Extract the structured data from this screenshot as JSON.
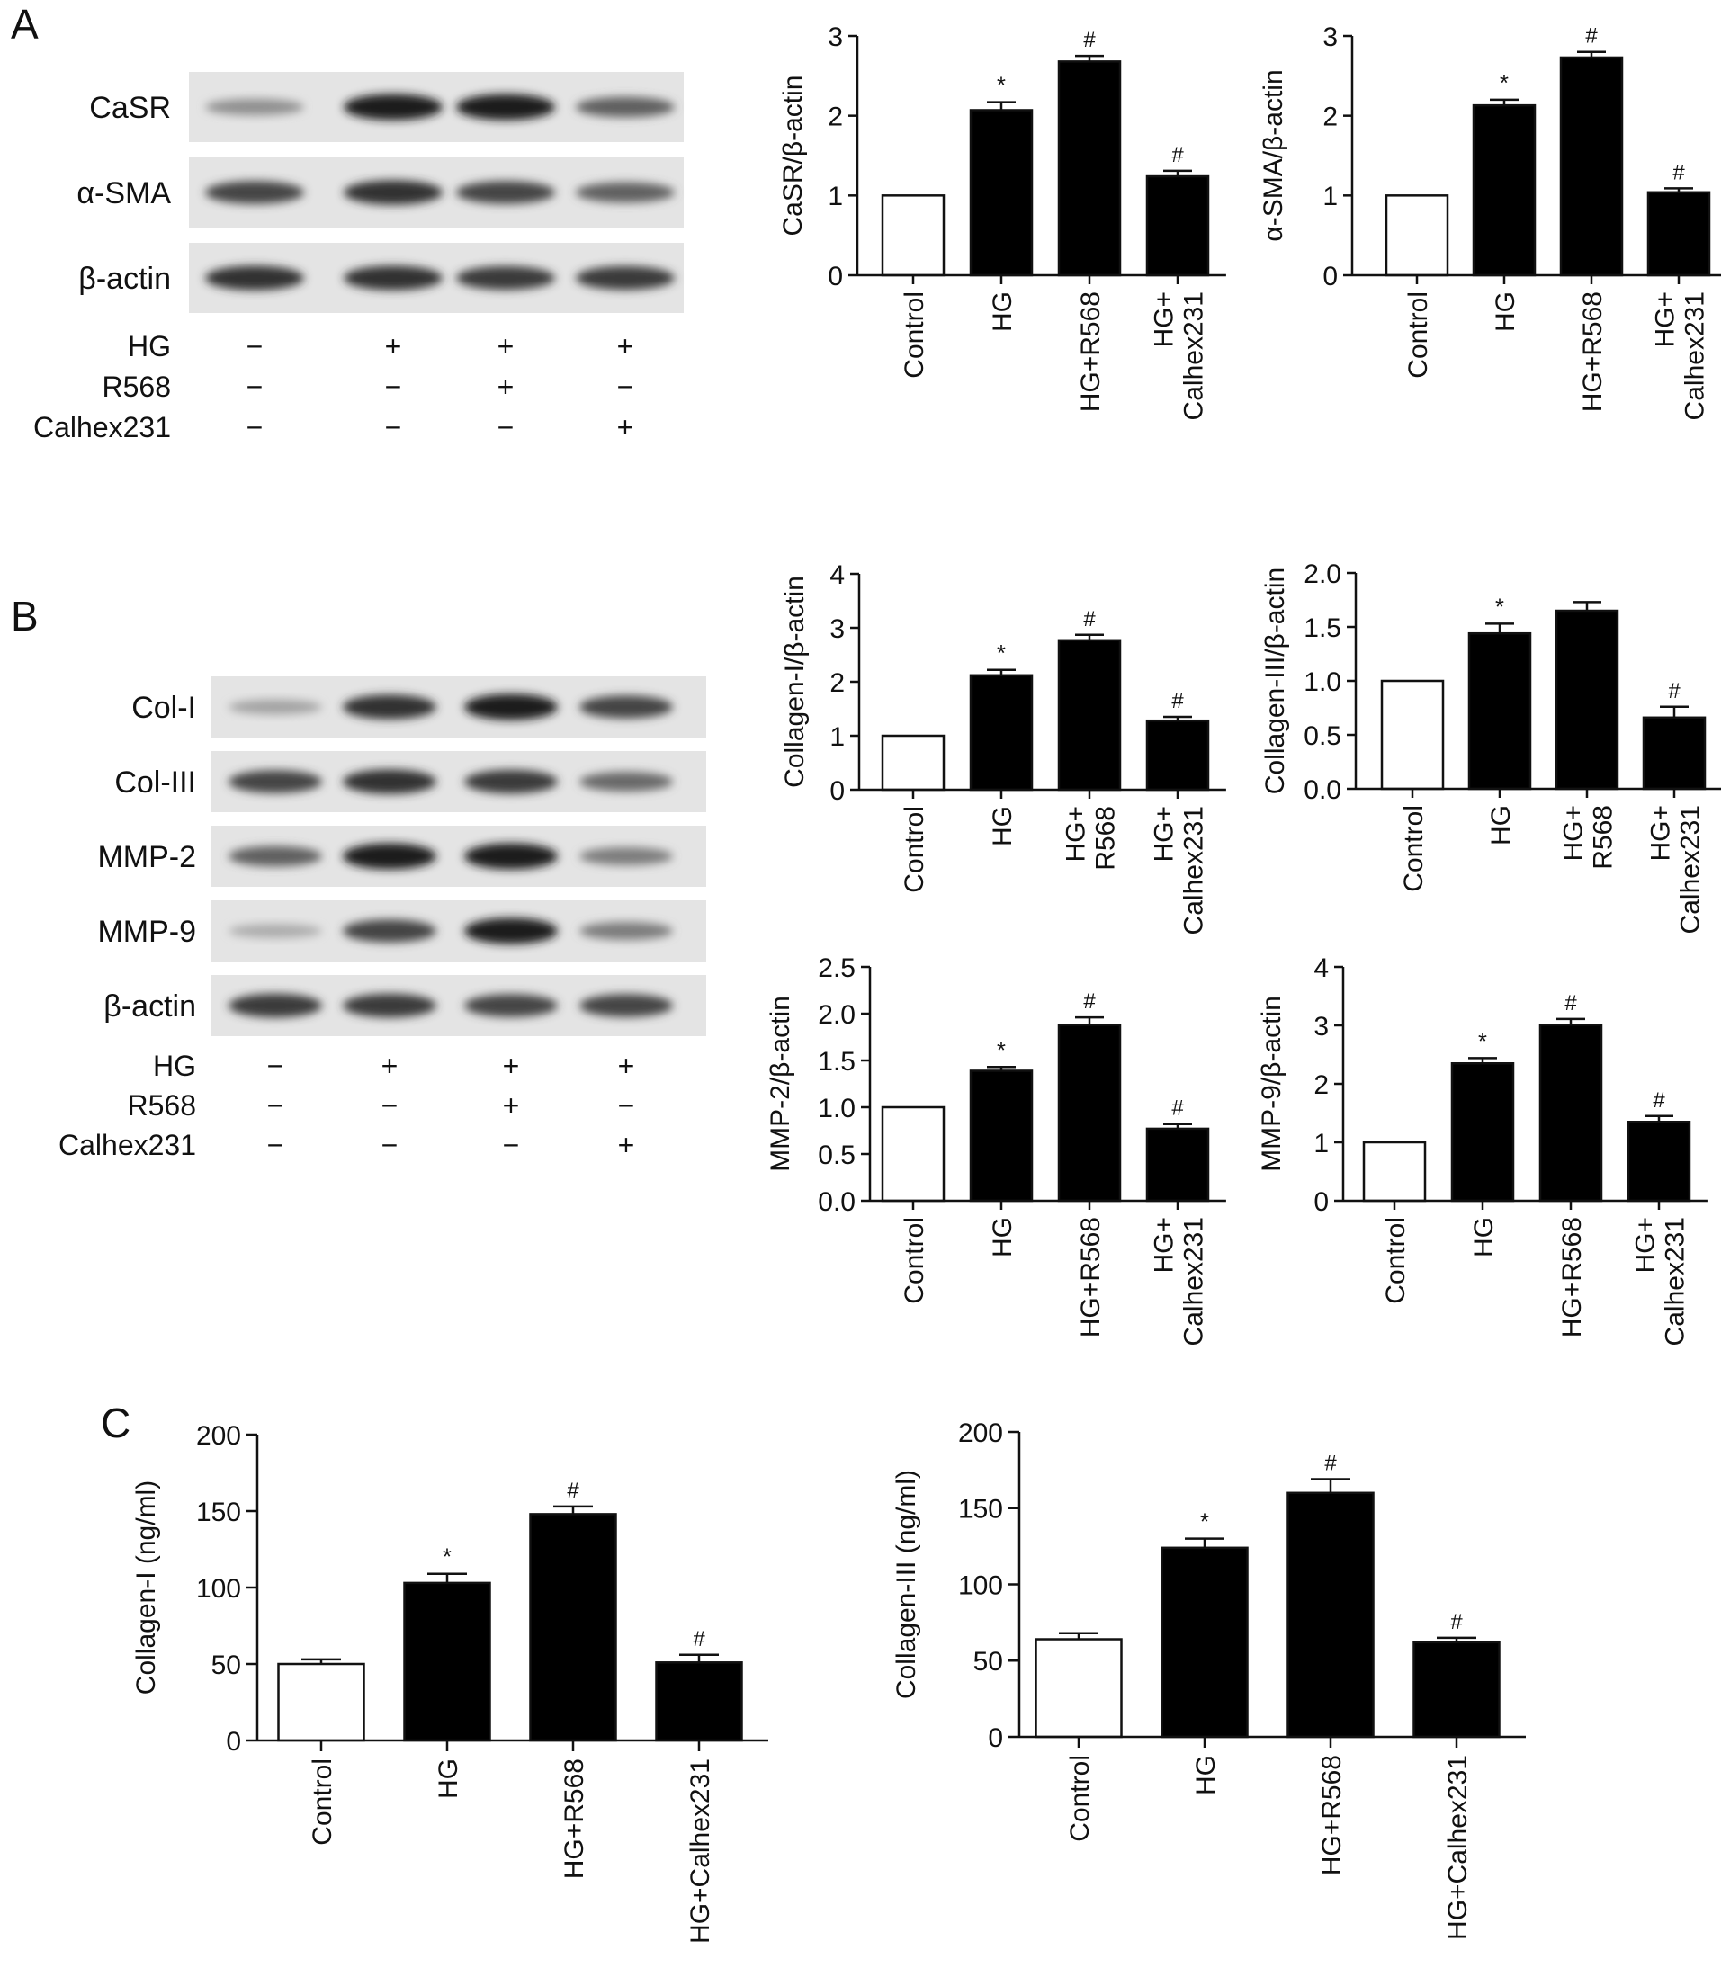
{
  "panels": {
    "A": {
      "letter": "A",
      "blot": {
        "rows": [
          "CaSR",
          "α-SMA",
          "β-actin"
        ],
        "band_intensity": [
          [
            0.35,
            0.95,
            0.95,
            0.6
          ],
          [
            0.75,
            0.85,
            0.75,
            0.6
          ],
          [
            0.85,
            0.85,
            0.8,
            0.8
          ]
        ],
        "treatments": [
          {
            "label": "HG",
            "signs": [
              "−",
              "+",
              "+",
              "+"
            ]
          },
          {
            "label": "R568",
            "signs": [
              "−",
              "−",
              "+",
              "−"
            ]
          },
          {
            "label": "Calhex231",
            "signs": [
              "−",
              "−",
              "−",
              "+"
            ]
          }
        ]
      }
    },
    "B": {
      "letter": "B",
      "blot": {
        "rows": [
          "Col-I",
          "Col-III",
          "MMP-2",
          "MMP-9",
          "β-actin"
        ],
        "band_intensity": [
          [
            0.25,
            0.85,
            0.95,
            0.75
          ],
          [
            0.75,
            0.85,
            0.8,
            0.55
          ],
          [
            0.6,
            0.95,
            0.95,
            0.45
          ],
          [
            0.2,
            0.75,
            0.95,
            0.45
          ],
          [
            0.8,
            0.8,
            0.75,
            0.75
          ]
        ],
        "treatments": [
          {
            "label": "HG",
            "signs": [
              "−",
              "+",
              "+",
              "+"
            ]
          },
          {
            "label": "R568",
            "signs": [
              "−",
              "−",
              "+",
              "−"
            ]
          },
          {
            "label": "Calhex231",
            "signs": [
              "−",
              "−",
              "−",
              "+"
            ]
          }
        ]
      }
    },
    "C": {
      "letter": "C"
    }
  },
  "chart_data": [
    {
      "type": "bar",
      "panel": "A",
      "ylabel": "CaSR/β-actin",
      "categories": [
        [
          "Control"
        ],
        [
          "HG"
        ],
        [
          "HG+R568"
        ],
        [
          "HG+",
          "Calhex231"
        ]
      ],
      "values": [
        1.0,
        2.07,
        2.68,
        1.24
      ],
      "errors": [
        0,
        0.1,
        0.07,
        0.07
      ],
      "annotations": [
        "",
        "*",
        "#",
        "#"
      ],
      "fill": [
        "#ffffff",
        "#000000",
        "#000000",
        "#000000"
      ],
      "ylim": [
        0,
        3
      ],
      "yticks": [
        "0",
        "1",
        "2",
        "3"
      ]
    },
    {
      "type": "bar",
      "panel": "A",
      "ylabel": "α-SMA/β-actin",
      "categories": [
        [
          "Control"
        ],
        [
          "HG"
        ],
        [
          "HG+R568"
        ],
        [
          "HG+",
          "Calhex231"
        ]
      ],
      "values": [
        1.0,
        2.13,
        2.73,
        1.04
      ],
      "errors": [
        0,
        0.07,
        0.07,
        0.05
      ],
      "annotations": [
        "",
        "*",
        "#",
        "#"
      ],
      "fill": [
        "#ffffff",
        "#000000",
        "#000000",
        "#000000"
      ],
      "ylim": [
        0,
        3
      ],
      "yticks": [
        "0",
        "1",
        "2",
        "3"
      ]
    },
    {
      "type": "bar",
      "panel": "B",
      "ylabel": "Collagen-I/β-actin",
      "categories": [
        [
          "Control"
        ],
        [
          "HG"
        ],
        [
          "HG+",
          "R568"
        ],
        [
          "HG+",
          "Calhex231"
        ]
      ],
      "values": [
        1.0,
        2.12,
        2.77,
        1.28
      ],
      "errors": [
        0,
        0.1,
        0.1,
        0.07
      ],
      "annotations": [
        "",
        "*",
        "#",
        "#"
      ],
      "fill": [
        "#ffffff",
        "#000000",
        "#000000",
        "#000000"
      ],
      "ylim": [
        0,
        4
      ],
      "yticks": [
        "0",
        "1",
        "2",
        "3",
        "4"
      ]
    },
    {
      "type": "bar",
      "panel": "B",
      "ylabel": "Collagen-III/β-actin",
      "categories": [
        [
          "Control"
        ],
        [
          "HG"
        ],
        [
          "HG+",
          "R568"
        ],
        [
          "HG+",
          "Calhex231"
        ]
      ],
      "values": [
        1.0,
        1.44,
        1.65,
        0.66
      ],
      "errors": [
        0,
        0.09,
        0.08,
        0.1
      ],
      "annotations": [
        "",
        "*",
        "",
        "#"
      ],
      "fill": [
        "#ffffff",
        "#000000",
        "#000000",
        "#000000"
      ],
      "ylim": [
        0,
        2
      ],
      "yticks": [
        "0.0",
        "0.5",
        "1.0",
        "1.5",
        "2.0"
      ]
    },
    {
      "type": "bar",
      "panel": "B",
      "ylabel": "MMP-2/β-actin",
      "categories": [
        [
          "Control"
        ],
        [
          "HG"
        ],
        [
          "HG+R568"
        ],
        [
          "HG+",
          "Calhex231"
        ]
      ],
      "values": [
        1.0,
        1.39,
        1.88,
        0.77
      ],
      "errors": [
        0,
        0.04,
        0.08,
        0.05
      ],
      "annotations": [
        "",
        "*",
        "#",
        "#"
      ],
      "fill": [
        "#ffffff",
        "#000000",
        "#000000",
        "#000000"
      ],
      "ylim": [
        0,
        2.5
      ],
      "yticks": [
        "0.0",
        "0.5",
        "1.0",
        "1.5",
        "2.0",
        "2.5"
      ]
    },
    {
      "type": "bar",
      "panel": "B",
      "ylabel": "MMP-9/β-actin",
      "categories": [
        [
          "Control"
        ],
        [
          "HG"
        ],
        [
          "HG+R568"
        ],
        [
          "HG+",
          "Calhex231"
        ]
      ],
      "values": [
        1.0,
        2.35,
        3.01,
        1.35
      ],
      "errors": [
        0,
        0.09,
        0.1,
        0.1
      ],
      "annotations": [
        "",
        "*",
        "#",
        "#"
      ],
      "fill": [
        "#ffffff",
        "#000000",
        "#000000",
        "#000000"
      ],
      "ylim": [
        0,
        4
      ],
      "yticks": [
        "0",
        "1",
        "2",
        "3",
        "4"
      ]
    },
    {
      "type": "bar",
      "panel": "C",
      "ylabel": "Collagen-I (ng/ml)",
      "categories": [
        [
          "Control"
        ],
        [
          "HG"
        ],
        [
          "HG+R568"
        ],
        [
          "HG+Calhex231"
        ]
      ],
      "values": [
        50,
        103,
        148,
        51
      ],
      "errors": [
        3,
        6,
        5,
        5
      ],
      "annotations": [
        "",
        "*",
        "#",
        "#"
      ],
      "fill": [
        "#ffffff",
        "#000000",
        "#000000",
        "#000000"
      ],
      "ylim": [
        0,
        200
      ],
      "yticks": [
        "0",
        "50",
        "100",
        "150",
        "200"
      ]
    },
    {
      "type": "bar",
      "panel": "C",
      "ylabel": "Collagen-III (ng/ml)",
      "categories": [
        [
          "Control"
        ],
        [
          "HG"
        ],
        [
          "HG+R568"
        ],
        [
          "HG+Calhex231"
        ]
      ],
      "values": [
        64,
        124,
        160,
        62
      ],
      "errors": [
        4,
        6,
        9,
        3
      ],
      "annotations": [
        "",
        "*",
        "#",
        "#"
      ],
      "fill": [
        "#ffffff",
        "#000000",
        "#000000",
        "#000000"
      ],
      "ylim": [
        0,
        200
      ],
      "yticks": [
        "0",
        "50",
        "100",
        "150",
        "200"
      ]
    }
  ]
}
